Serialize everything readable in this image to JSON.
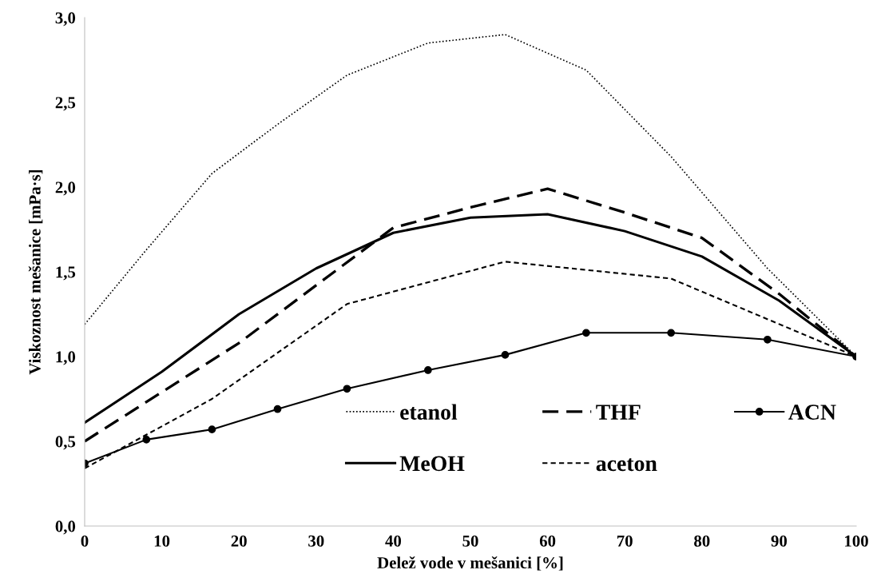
{
  "chart_data": {
    "type": "line",
    "xlabel": "Delež vode v mešanici [%]",
    "ylabel": "Viskoznost mešanice [mPa·s]",
    "xlim": [
      0,
      100
    ],
    "xticks": [
      0,
      10,
      20,
      30,
      40,
      50,
      60,
      70,
      80,
      90,
      100
    ],
    "ylim": [
      0,
      3.0
    ],
    "yticks": [
      {
        "value": 0,
        "label": "0,0"
      },
      {
        "value": 0.5,
        "label": "0,5"
      },
      {
        "value": 1.0,
        "label": "1,0"
      },
      {
        "value": 1.5,
        "label": "1,5"
      },
      {
        "value": 2.0,
        "label": "2,0"
      },
      {
        "value": 2.5,
        "label": "2,5"
      },
      {
        "value": 3.0,
        "label": "3,0"
      }
    ],
    "grid": false,
    "legend": "bottom right",
    "series": [
      {
        "name": "etanol",
        "color": "#000000",
        "line_style": "dotted",
        "marker": "none",
        "x": [
          0,
          8,
          16.5,
          25,
          34,
          44.5,
          54.5,
          65,
          76,
          88.5,
          100
        ],
        "values": [
          1.19,
          1.63,
          2.08,
          2.37,
          2.66,
          2.85,
          2.9,
          2.69,
          2.18,
          1.52,
          1.0
        ]
      },
      {
        "name": "MeOH",
        "color": "#000000",
        "line_style": "solid",
        "marker": "none",
        "x": [
          0,
          10,
          20,
          30,
          40,
          50,
          60,
          70,
          80,
          90,
          100
        ],
        "values": [
          0.61,
          0.91,
          1.25,
          1.52,
          1.73,
          1.82,
          1.84,
          1.74,
          1.59,
          1.33,
          1.0
        ]
      },
      {
        "name": "THF",
        "color": "#000000",
        "line_style": "dashed",
        "marker": "none",
        "x": [
          0,
          10,
          20,
          30,
          40,
          50,
          60,
          70,
          80,
          90,
          100
        ],
        "values": [
          0.5,
          0.79,
          1.08,
          1.42,
          1.76,
          1.88,
          1.99,
          1.85,
          1.7,
          1.37,
          1.0
        ]
      },
      {
        "name": "aceton",
        "color": "#000000",
        "line_style": "densely_dashed",
        "marker": "none",
        "x": [
          0,
          16.5,
          34,
          54.5,
          76,
          100
        ],
        "values": [
          0.34,
          0.75,
          1.31,
          1.56,
          1.46,
          1.0
        ]
      },
      {
        "name": "ACN",
        "color": "#000000",
        "line_style": "solid",
        "marker": "circle",
        "x": [
          0,
          8,
          16.5,
          25,
          34,
          44.5,
          54.5,
          65,
          76,
          88.5,
          100
        ],
        "values": [
          0.37,
          0.51,
          0.57,
          0.69,
          0.81,
          0.92,
          1.01,
          1.14,
          1.14,
          1.1,
          1.0
        ]
      }
    ]
  }
}
